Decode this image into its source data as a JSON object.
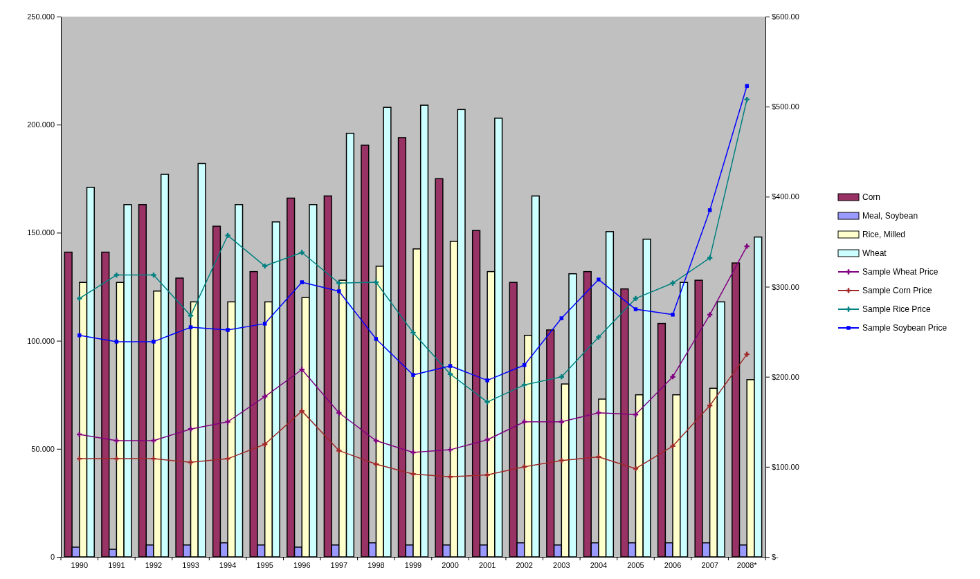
{
  "chart_data": {
    "type": "bar",
    "categories": [
      "1990",
      "1991",
      "1992",
      "1993",
      "1994",
      "1995",
      "1996",
      "1997",
      "1998",
      "1999",
      "2000",
      "2001",
      "2002",
      "2003",
      "2004",
      "2005",
      "2006",
      "2007",
      "2008*"
    ],
    "series": [
      {
        "name": "Corn",
        "color": "#993366",
        "values": [
          141,
          141,
          163,
          129,
          153,
          132,
          166,
          167,
          190.5,
          194,
          175,
          151,
          127,
          105,
          132,
          124,
          108,
          128,
          136
        ]
      },
      {
        "name": "Meal, Soybean",
        "color": "#9999ff",
        "values": [
          4.5,
          3.5,
          5.5,
          5.5,
          6.5,
          5.5,
          4.5,
          5.5,
          6.5,
          5.5,
          5.5,
          5.5,
          6.5,
          5.5,
          6.5,
          6.5,
          6.5,
          6.5,
          5.5
        ]
      },
      {
        "name": "Rice, Milled",
        "color": "#ffffcc",
        "values": [
          127,
          127,
          123,
          118,
          118,
          118,
          120,
          128,
          134.5,
          142.5,
          146,
          132,
          102.5,
          80,
          73,
          75,
          75,
          78,
          82
        ]
      },
      {
        "name": "Wheat",
        "color": "#ccffff",
        "values": [
          171,
          163,
          177,
          182,
          163,
          155,
          163,
          196,
          208,
          209,
          207,
          203,
          167,
          131,
          150.5,
          147,
          127,
          118,
          148
        ]
      },
      {
        "name": "Sample Wheat Price",
        "type": "line",
        "axis": "y2",
        "color": "#800080",
        "marker": "cross",
        "values": [
          136,
          129,
          129,
          142,
          150,
          178,
          208,
          160,
          129,
          116,
          119,
          130,
          150,
          150,
          160,
          158,
          200,
          269,
          345
        ]
      },
      {
        "name": "Sample Corn Price",
        "type": "line",
        "axis": "y2",
        "color": "#a02828",
        "marker": "cross",
        "values": [
          109,
          109,
          109,
          105,
          109,
          125,
          162,
          118,
          103,
          92,
          89,
          91,
          100,
          107,
          111,
          98,
          123,
          168,
          225
        ]
      },
      {
        "name": "Sample Rice Price",
        "type": "line",
        "axis": "y2",
        "color": "#008080",
        "marker": "cross",
        "values": [
          287,
          313,
          313,
          268,
          357,
          323,
          338,
          304,
          305,
          249,
          203,
          172,
          191,
          200,
          244,
          287,
          304,
          332,
          508
        ]
      },
      {
        "name": "Sample Soybean Price",
        "type": "line",
        "axis": "y2",
        "color": "#0000ff",
        "marker": "square",
        "values": [
          246,
          239,
          239,
          255,
          252,
          259,
          305,
          295,
          242,
          202,
          212,
          196,
          213,
          265,
          308,
          275,
          269,
          385,
          523
        ]
      }
    ],
    "ylim": [
      0,
      250
    ],
    "yticks": [
      {
        "value": 0,
        "label": "0"
      },
      {
        "value": 50,
        "label": "50.000"
      },
      {
        "value": 100,
        "label": "100.000"
      },
      {
        "value": 150,
        "label": "150.000"
      },
      {
        "value": 200,
        "label": "200.000"
      },
      {
        "value": 250,
        "label": "250.000"
      }
    ],
    "y2lim": [
      0,
      600
    ],
    "y2ticks": [
      {
        "value": 0,
        "label": "$-"
      },
      {
        "value": 100,
        "label": "$100.00"
      },
      {
        "value": 200,
        "label": "$200.00"
      },
      {
        "value": 300,
        "label": "$300.00"
      },
      {
        "value": 400,
        "label": "$400.00"
      },
      {
        "value": 500,
        "label": "$500.00"
      },
      {
        "value": 600,
        "label": "$600.00"
      }
    ],
    "grid": false,
    "legend": "right"
  }
}
